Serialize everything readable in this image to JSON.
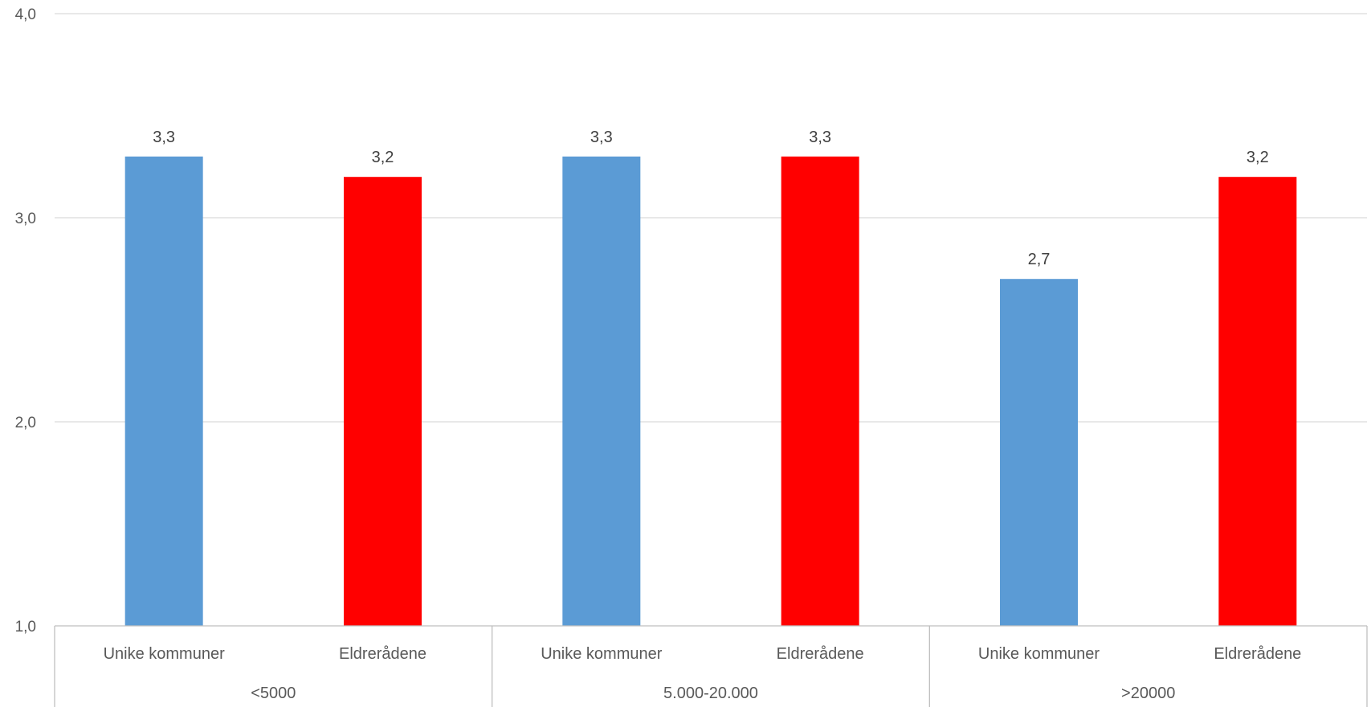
{
  "chart_data": {
    "type": "bar",
    "groups": [
      {
        "label": "<5000",
        "categories": [
          "Unike kommuner",
          "Eldrerådene"
        ]
      },
      {
        "label": "5.000-20.000",
        "categories": [
          "Unike kommuner",
          "Eldrerådene"
        ]
      },
      {
        "label": ">20000",
        "categories": [
          "Unike kommuner",
          "Eldrerådene"
        ]
      }
    ],
    "bars": [
      {
        "group": "<5000",
        "category": "Unike kommuner",
        "value": 3.3,
        "label": "3,3",
        "color": "#5B9BD5"
      },
      {
        "group": "<5000",
        "category": "Eldrerådene",
        "value": 3.2,
        "label": "3,2",
        "color": "#FF0000"
      },
      {
        "group": "5.000-20.000",
        "category": "Unike kommuner",
        "value": 3.3,
        "label": "3,3",
        "color": "#5B9BD5"
      },
      {
        "group": "5.000-20.000",
        "category": "Eldrerådene",
        "value": 3.3,
        "label": "3,3",
        "color": "#FF0000"
      },
      {
        "group": ">20000",
        "category": "Unike kommuner",
        "value": 2.7,
        "label": "2,7",
        "color": "#5B9BD5"
      },
      {
        "group": ">20000",
        "category": "Eldrerådene",
        "value": 3.2,
        "label": "3,2",
        "color": "#FF0000"
      }
    ],
    "yticks": [
      {
        "value": 1.0,
        "label": "1,0"
      },
      {
        "value": 2.0,
        "label": "2,0"
      },
      {
        "value": 3.0,
        "label": "3,0"
      },
      {
        "value": 4.0,
        "label": "4,0"
      }
    ],
    "ylim": [
      1.0,
      4.0
    ],
    "grid": true,
    "legend": "none",
    "title": "",
    "xlabel": "",
    "ylabel": ""
  }
}
